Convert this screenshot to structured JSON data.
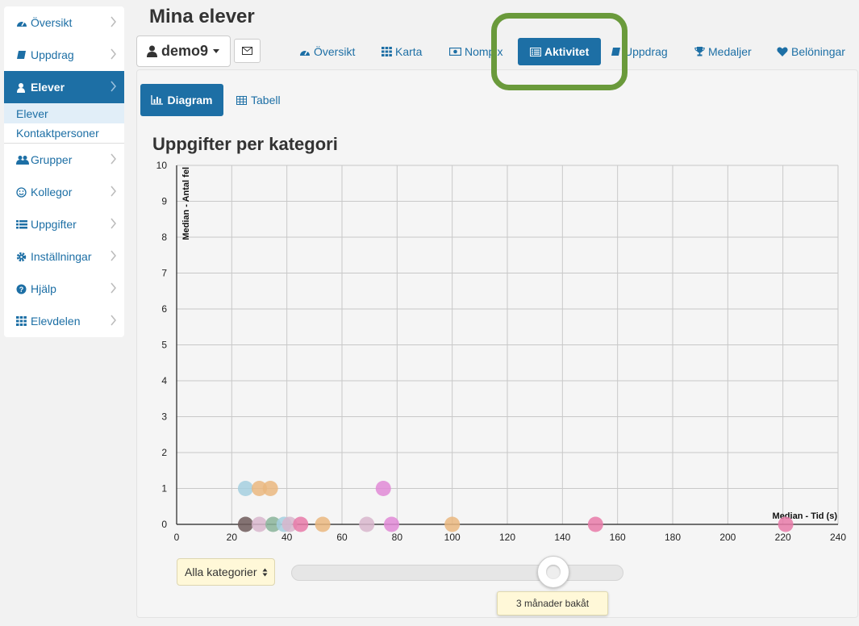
{
  "sidebar": {
    "items": [
      {
        "label": "Översikt",
        "icon": "dashboard-icon"
      },
      {
        "label": "Uppdrag",
        "icon": "book-icon"
      },
      {
        "label": "Elever",
        "icon": "user-icon",
        "active": true
      },
      {
        "label": "Grupper",
        "icon": "users-icon"
      },
      {
        "label": "Kollegor",
        "icon": "smiley-icon"
      },
      {
        "label": "Uppgifter",
        "icon": "list-icon"
      },
      {
        "label": "Inställningar",
        "icon": "gear-icon"
      },
      {
        "label": "Hjälp",
        "icon": "question-icon"
      },
      {
        "label": "Elevdelen",
        "icon": "grid-icon"
      }
    ],
    "subitems": [
      {
        "label": "Elever",
        "active": true
      },
      {
        "label": "Kontaktpersoner"
      }
    ]
  },
  "header": {
    "title": "Mina elever",
    "user": "demo9"
  },
  "tabs": [
    {
      "label": "Översikt",
      "icon": "dashboard-icon"
    },
    {
      "label": "Karta",
      "icon": "grid-icon"
    },
    {
      "label": "Nompix",
      "icon": "money-icon"
    },
    {
      "label": "Aktivitet",
      "icon": "list-alt-icon",
      "active": true
    },
    {
      "label": "Uppdrag",
      "icon": "book-icon"
    },
    {
      "label": "Medaljer",
      "icon": "trophy-icon"
    },
    {
      "label": "Belöningar",
      "icon": "heart-icon"
    }
  ],
  "views": {
    "diagram": "Diagram",
    "tabell": "Tabell"
  },
  "chart_title": "Uppgifter per kategori",
  "chart_data": {
    "type": "scatter",
    "title": "Uppgifter per kategori",
    "xlabel": "Median - Tid (s)",
    "ylabel": "Median - Antal fel",
    "xlim": [
      0,
      240
    ],
    "ylim": [
      0,
      10
    ],
    "xticks": [
      0,
      20,
      40,
      60,
      80,
      100,
      120,
      140,
      160,
      180,
      200,
      220,
      240
    ],
    "yticks": [
      0,
      1,
      2,
      3,
      4,
      5,
      6,
      7,
      8,
      9,
      10
    ],
    "grid": true,
    "points": [
      {
        "x": 25,
        "y": 1,
        "color": "#a5cfdf"
      },
      {
        "x": 30,
        "y": 1,
        "color": "#eab77f"
      },
      {
        "x": 34,
        "y": 1,
        "color": "#eab77f"
      },
      {
        "x": 75,
        "y": 1,
        "color": "#e089d6"
      },
      {
        "x": 25,
        "y": 0,
        "color": "#6e5a5a"
      },
      {
        "x": 30,
        "y": 0,
        "color": "#d8b6cc"
      },
      {
        "x": 35,
        "y": 0,
        "color": "#89b49a"
      },
      {
        "x": 39,
        "y": 0,
        "color": "#a5cfdf"
      },
      {
        "x": 41,
        "y": 0,
        "color": "#d8b6cc"
      },
      {
        "x": 45,
        "y": 0,
        "color": "#e87aa8"
      },
      {
        "x": 53,
        "y": 0,
        "color": "#eab77f"
      },
      {
        "x": 69,
        "y": 0,
        "color": "#d8b6cc"
      },
      {
        "x": 78,
        "y": 0,
        "color": "#e089d6"
      },
      {
        "x": 100,
        "y": 0,
        "color": "#eab77f"
      },
      {
        "x": 152,
        "y": 0,
        "color": "#e87aa8"
      },
      {
        "x": 221,
        "y": 0,
        "color": "#e87aa8"
      }
    ]
  },
  "filter": {
    "category": "Alla kategorier"
  },
  "slider": {
    "value": 0.79,
    "tooltip": "3 månader bakåt"
  },
  "colors": {
    "accent": "#1d6fa5",
    "highlight": "#6a9a3b"
  }
}
